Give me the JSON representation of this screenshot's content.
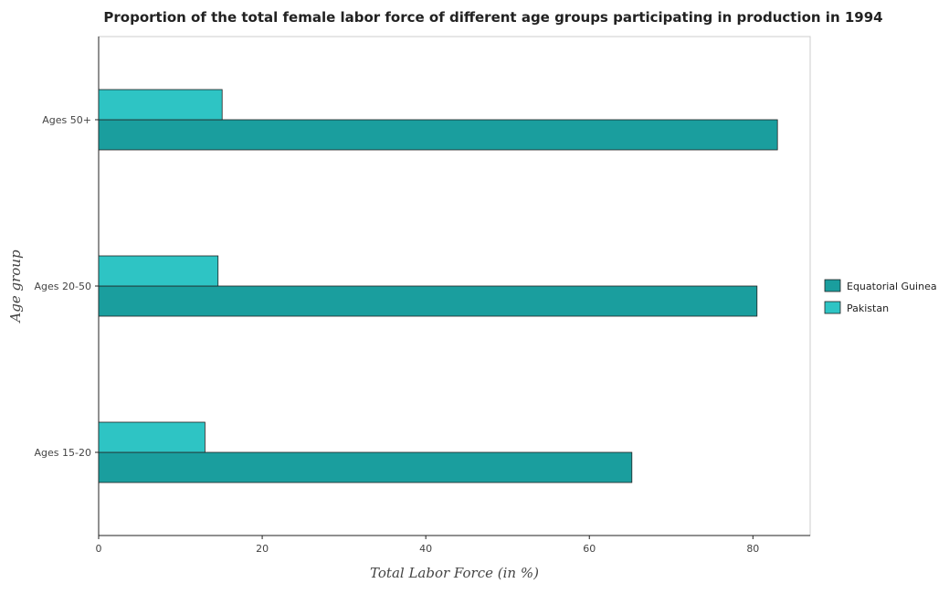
{
  "chart_data": {
    "type": "bar",
    "orientation": "horizontal",
    "title": "Proportion of the total female labor force of different age groups participating in production in 1994",
    "xlabel": "Total Labor Force (in %)",
    "ylabel": "Age group",
    "categories": [
      "Ages 15-20",
      "Ages 20-50",
      "Ages 50+"
    ],
    "xlim": [
      0,
      87
    ],
    "xticks": [
      0,
      20,
      40,
      60,
      80
    ],
    "series": [
      {
        "name": "Equatorial Guinea",
        "color": "#1a9e9e",
        "values": [
          65.2,
          80.5,
          83.0
        ]
      },
      {
        "name": "Pakistan",
        "color": "#2ec4c4",
        "values": [
          13.0,
          14.6,
          15.1
        ]
      }
    ],
    "legend_position": "right",
    "grid": false
  }
}
